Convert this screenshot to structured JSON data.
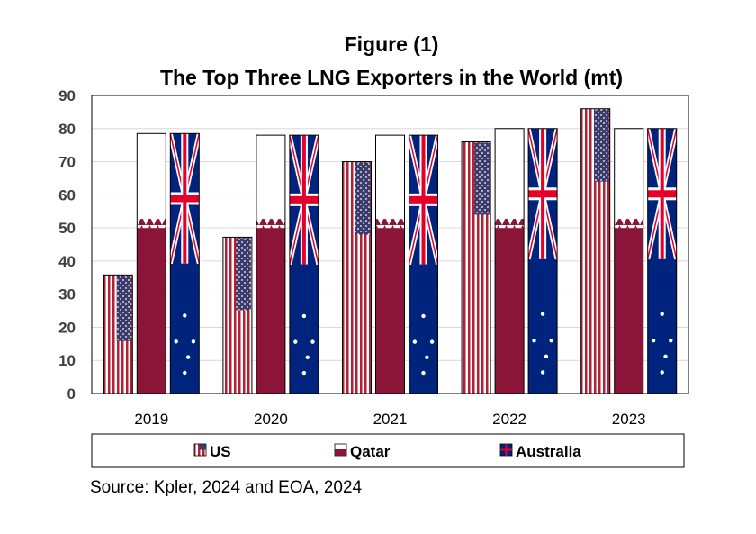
{
  "chart_data": {
    "type": "bar",
    "title": "Figure (1)",
    "subtitle": "The Top Three LNG Exporters in the World (mt)",
    "categories": [
      "2019",
      "2020",
      "2021",
      "2022",
      "2023"
    ],
    "series": [
      {
        "name": "US",
        "values": [
          35.8,
          47.2,
          70.0,
          76.0,
          86.0
        ]
      },
      {
        "name": "Qatar",
        "values": [
          78.5,
          78.0,
          78.0,
          80.0,
          80.0
        ]
      },
      {
        "name": "Australia",
        "values": [
          78.5,
          78.0,
          78.0,
          80.0,
          80.0
        ]
      }
    ],
    "ylim": [
      0,
      90
    ],
    "yticks": [
      0,
      10,
      20,
      30,
      40,
      50,
      60,
      70,
      80,
      90
    ],
    "grid": true,
    "legend": "bottom",
    "source": "Source: Kpler, 2024 and EOA, 2024",
    "colors": {
      "us_red": "#b22234",
      "us_blue": "#3c3b6e",
      "qatar": "#8a1538",
      "aus_blue": "#00247d",
      "aus_red": "#e4002b"
    }
  }
}
